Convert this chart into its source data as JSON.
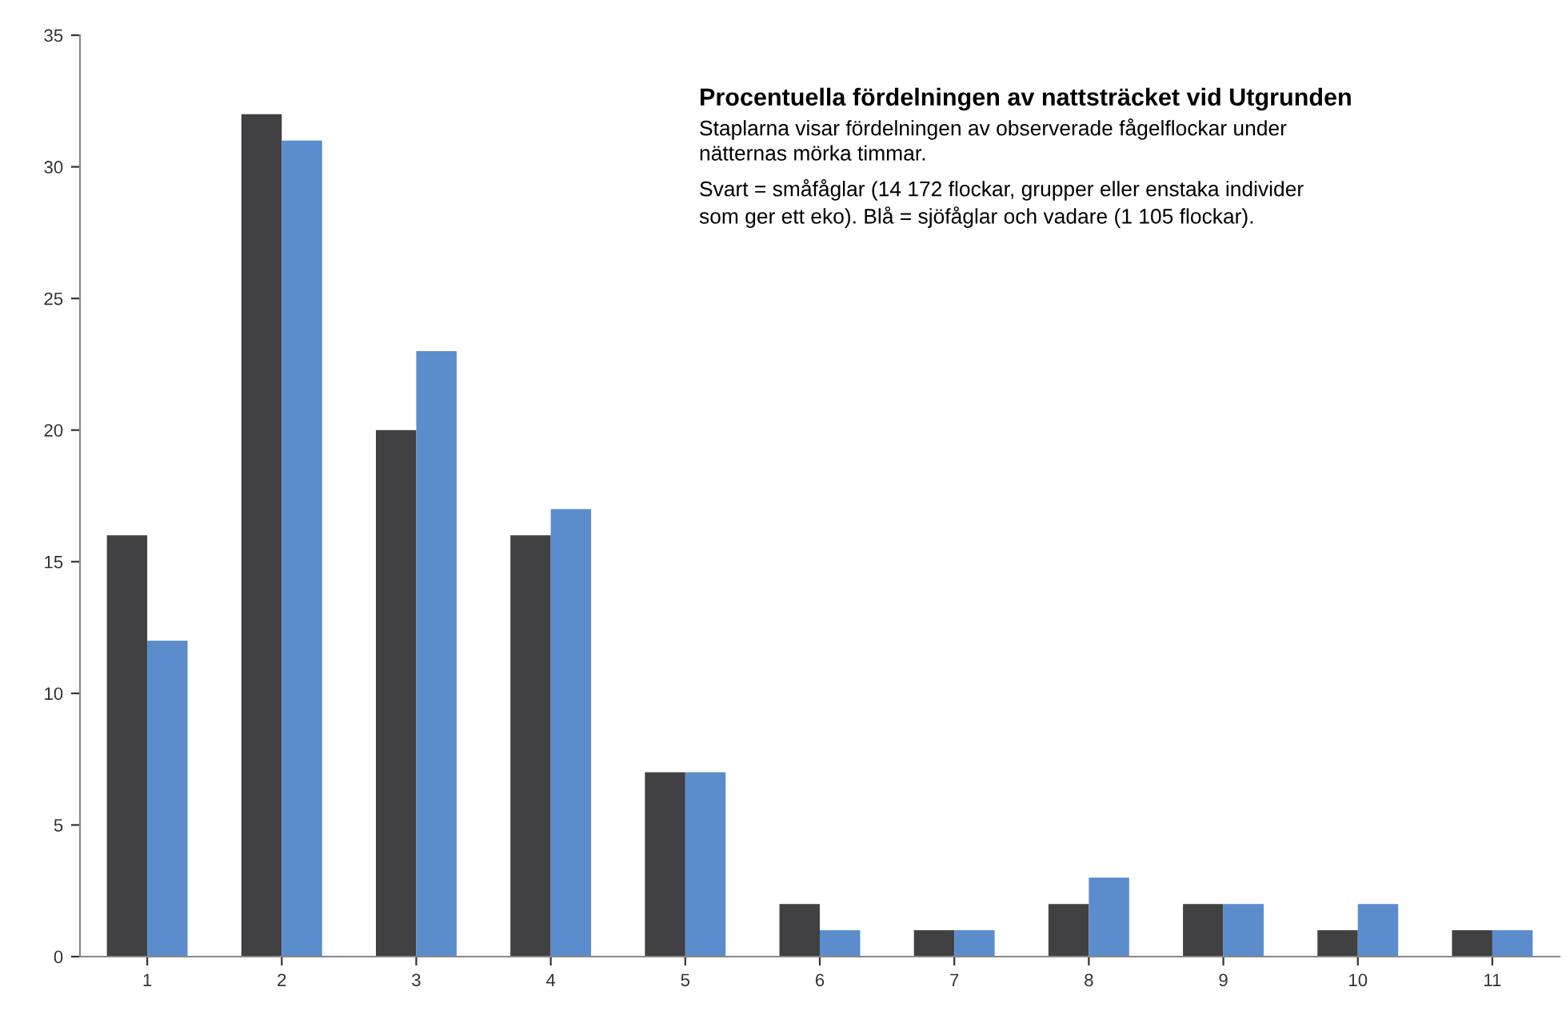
{
  "chart_data": {
    "type": "bar",
    "title": "Procentuella fördelningen av nattsträcket vid Utgrunden",
    "subtitle": "Staplarna visar fördelningen av observerade fågelflockar under\nnätternas mörka timmar.",
    "annotations": [
      "Svart = småfåglar (14 172 flockar, grupper eller enstaka individer\nsom ger ett eko). Blå = sjöfåglar och vadare (1 105 flockar)."
    ],
    "categories": [
      "1",
      "2",
      "3",
      "4",
      "5",
      "6",
      "7",
      "8",
      "9",
      "10",
      "11"
    ],
    "series": [
      {
        "color": "#414042",
        "values": [
          16,
          32,
          20,
          16,
          7,
          2,
          1,
          2,
          2,
          1,
          1
        ]
      },
      {
        "color": "#5b8ccc",
        "values": [
          12,
          31,
          23,
          17,
          7,
          1,
          1,
          3,
          2,
          2,
          1
        ]
      }
    ],
    "ylim": [
      0,
      35
    ],
    "yticks": [
      0,
      5,
      10,
      15,
      20,
      25,
      30,
      35
    ],
    "grid": false,
    "legend": false
  }
}
